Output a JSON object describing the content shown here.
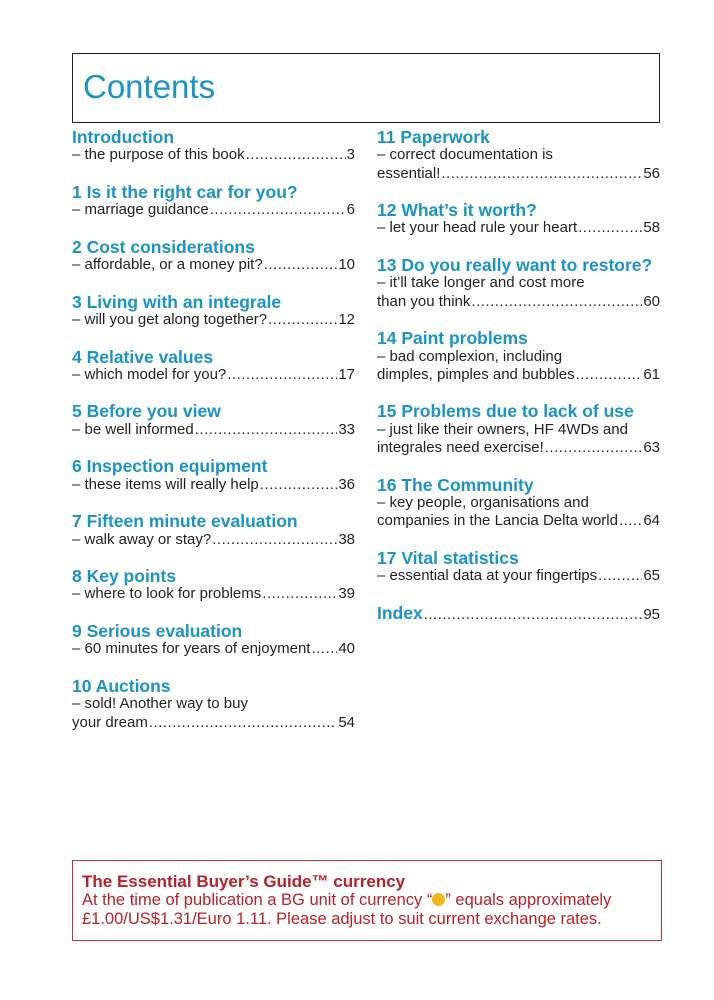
{
  "title": "Contents",
  "left_entries": [
    {
      "heading": "Introduction",
      "lines": [
        "– the purpose of this book"
      ],
      "page": "3"
    },
    {
      "heading": "1 Is it the right car for you?",
      "lines": [
        "– marriage guidance"
      ],
      "page": "6"
    },
    {
      "heading": "2 Cost considerations",
      "lines": [
        "– affordable, or a money pit?"
      ],
      "page": "10"
    },
    {
      "heading": "3 Living with an integrale",
      "lines": [
        "– will you get along together?"
      ],
      "page": "12"
    },
    {
      "heading": "4 Relative values",
      "lines": [
        "– which model for you?"
      ],
      "page": "17"
    },
    {
      "heading": "5 Before you view",
      "lines": [
        "– be well informed"
      ],
      "page": "33"
    },
    {
      "heading": "6 Inspection equipment",
      "lines": [
        "– these items will really help"
      ],
      "page": "36"
    },
    {
      "heading": "7 Fifteen minute evaluation",
      "lines": [
        "– walk away or stay?"
      ],
      "page": "38"
    },
    {
      "heading": "8 Key points",
      "lines": [
        "– where to look for problems"
      ],
      "page": "39"
    },
    {
      "heading": "9 Serious evaluation",
      "lines": [
        "– 60 minutes for years of enjoyment"
      ],
      "page": "40"
    },
    {
      "heading": "10 Auctions",
      "lines": [
        "– sold! Another way to buy",
        "your dream"
      ],
      "page": "54"
    }
  ],
  "right_entries": [
    {
      "heading": "11 Paperwork",
      "lines": [
        "– correct documentation is",
        "essential!"
      ],
      "page": "56"
    },
    {
      "heading": "12 What’s it worth?",
      "lines": [
        "– let your head rule your heart"
      ],
      "page": "58"
    },
    {
      "heading": "13 Do you really want to restore?",
      "lines": [
        "– it’ll take longer and cost more",
        "than you think"
      ],
      "page": "60"
    },
    {
      "heading": "14 Paint problems",
      "lines": [
        "– bad complexion, including",
        "dimples, pimples and bubbles"
      ],
      "page": "61"
    },
    {
      "heading": "15 Problems due to lack of use",
      "lines": [
        "– just like their owners, HF 4WDs and",
        "integrales need exercise!"
      ],
      "page": "63"
    },
    {
      "heading": "16 The Community",
      "lines": [
        "– key people, organisations and",
        "companies in the Lancia Delta world"
      ],
      "page": "64"
    },
    {
      "heading": "17 Vital statistics",
      "lines": [
        "– essential data at your fingertips"
      ],
      "page": "65"
    }
  ],
  "index": {
    "heading": "Index",
    "page": "95"
  },
  "currency": {
    "heading": "The Essential Buyer’s Guide™ currency",
    "line1_a": "At the time of publication a BG unit of currency “",
    "line1_b": "” equals approximately",
    "line2": "£1.00/US$1.31/Euro 1.11. Please adjust to suit current exchange rates.",
    "coin_color": "#f0b81e"
  }
}
